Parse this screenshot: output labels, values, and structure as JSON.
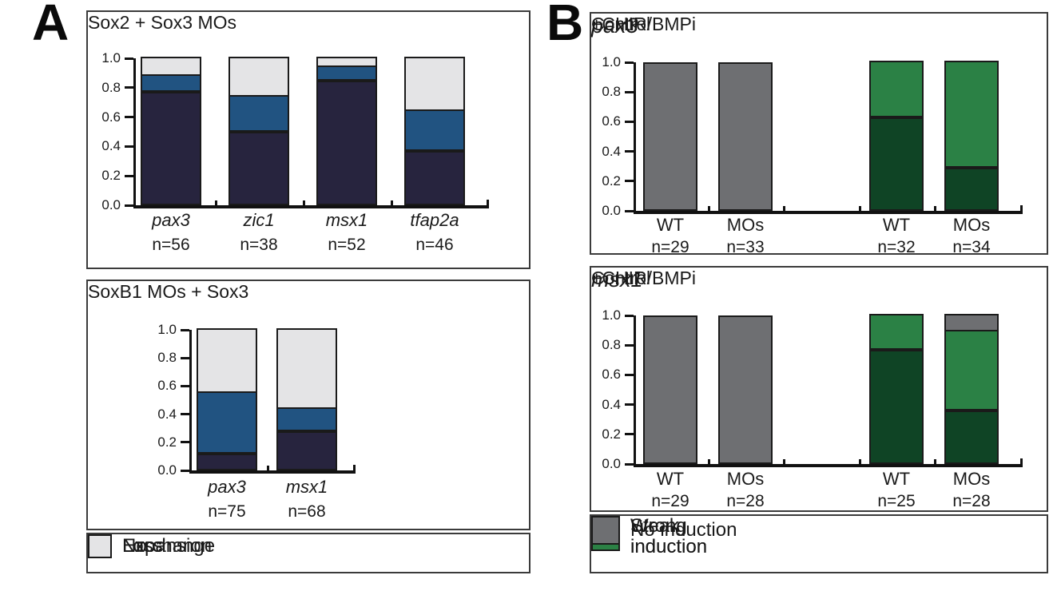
{
  "figure": {
    "panel_a": {
      "label": "A",
      "legend": {
        "items": [
          {
            "label": "Expansion",
            "color_key": "expansion"
          },
          {
            "label": "Loss",
            "color_key": "loss"
          },
          {
            "label": "No change",
            "color_key": "no_change"
          }
        ]
      }
    },
    "panel_b": {
      "label": "B",
      "legend": {
        "items": [
          {
            "label": "Strong\ninduction",
            "color_key": "strong"
          },
          {
            "label": "Weak\ninduction",
            "color_key": "weak"
          },
          {
            "label": "No induction",
            "color_key": "no_induction"
          }
        ]
      }
    }
  },
  "colors": {
    "expansion": "#215381",
    "loss": "#27243E",
    "no_change": "#E4E4E6",
    "strong": "#0F4425",
    "weak": "#2B8145",
    "no_induction": "#6E6F72",
    "bar_border": "#1a1a1a",
    "axis": "#111111"
  },
  "chart_data": [
    {
      "id": "a-top",
      "type": "bar",
      "stacked": true,
      "title": "Sox2 + Sox3 MOs",
      "categories": [
        "pax3",
        "zic1",
        "msx1",
        "tfap2a"
      ],
      "n_labels": [
        "n=56",
        "n=38",
        "n=52",
        "n=46"
      ],
      "ylim": [
        0,
        1
      ],
      "yticks": [
        "1.0",
        "0.8",
        "0.6",
        "0.4",
        "0.2",
        "0.0"
      ],
      "grid": false,
      "series": [
        {
          "name": "Loss",
          "color_key": "loss",
          "values": [
            0.77,
            0.5,
            0.85,
            0.37
          ]
        },
        {
          "name": "Expansion",
          "color_key": "expansion",
          "values": [
            0.11,
            0.24,
            0.09,
            0.27
          ]
        },
        {
          "name": "No change",
          "color_key": "no_change",
          "values": [
            0.12,
            0.26,
            0.06,
            0.36
          ]
        }
      ]
    },
    {
      "id": "a-bottom",
      "type": "bar",
      "stacked": true,
      "title": "SoxB1 MOs + Sox3",
      "categories": [
        "pax3",
        "msx1"
      ],
      "n_labels": [
        "n=75",
        "n=68"
      ],
      "ylim": [
        0,
        1
      ],
      "yticks": [
        "1.0",
        "0.8",
        "0.6",
        "0.4",
        "0.2",
        "0.0"
      ],
      "grid": false,
      "series": [
        {
          "name": "Loss",
          "color_key": "loss",
          "values": [
            0.12,
            0.28
          ]
        },
        {
          "name": "Expansion",
          "color_key": "expansion",
          "values": [
            0.43,
            0.16
          ]
        },
        {
          "name": "No change",
          "color_key": "no_change",
          "values": [
            0.45,
            0.56
          ]
        }
      ]
    },
    {
      "id": "b-top",
      "type": "bar",
      "stacked": true,
      "gene_label": "pax3",
      "group_headers": [
        "Control",
        "+CHIR/BMPi"
      ],
      "categories": [
        "WT",
        "MOs",
        "WT",
        "MOs"
      ],
      "n_labels": [
        "n=29",
        "n=33",
        "n=32",
        "n=34"
      ],
      "ylim": [
        0,
        1
      ],
      "yticks": [
        "1.0",
        "0.8",
        "0.6",
        "0.4",
        "0.2",
        "0.0"
      ],
      "grid": false,
      "series": [
        {
          "name": "Strong induction",
          "color_key": "strong",
          "values": [
            0,
            0,
            0.63,
            0.29
          ]
        },
        {
          "name": "Weak induction",
          "color_key": "weak",
          "values": [
            0,
            0,
            0.37,
            0.71
          ]
        },
        {
          "name": "No induction",
          "color_key": "no_induction",
          "values": [
            1.0,
            1.0,
            0,
            0
          ]
        }
      ]
    },
    {
      "id": "b-bottom",
      "type": "bar",
      "stacked": true,
      "gene_label": "msx1",
      "group_headers": [
        "Control",
        "+CHIR/BMPi"
      ],
      "categories": [
        "WT",
        "MOs",
        "WT",
        "MOs"
      ],
      "n_labels": [
        "n=29",
        "n=28",
        "n=25",
        "n=28"
      ],
      "ylim": [
        0,
        1
      ],
      "yticks": [
        "1.0",
        "0.8",
        "0.6",
        "0.4",
        "0.2",
        "0.0"
      ],
      "grid": false,
      "series": [
        {
          "name": "Strong induction",
          "color_key": "strong",
          "values": [
            0,
            0,
            0.77,
            0.36
          ]
        },
        {
          "name": "Weak induction",
          "color_key": "weak",
          "values": [
            0,
            0,
            0.23,
            0.53
          ]
        },
        {
          "name": "No induction",
          "color_key": "no_induction",
          "values": [
            1.0,
            1.0,
            0,
            0.11
          ]
        }
      ]
    }
  ]
}
